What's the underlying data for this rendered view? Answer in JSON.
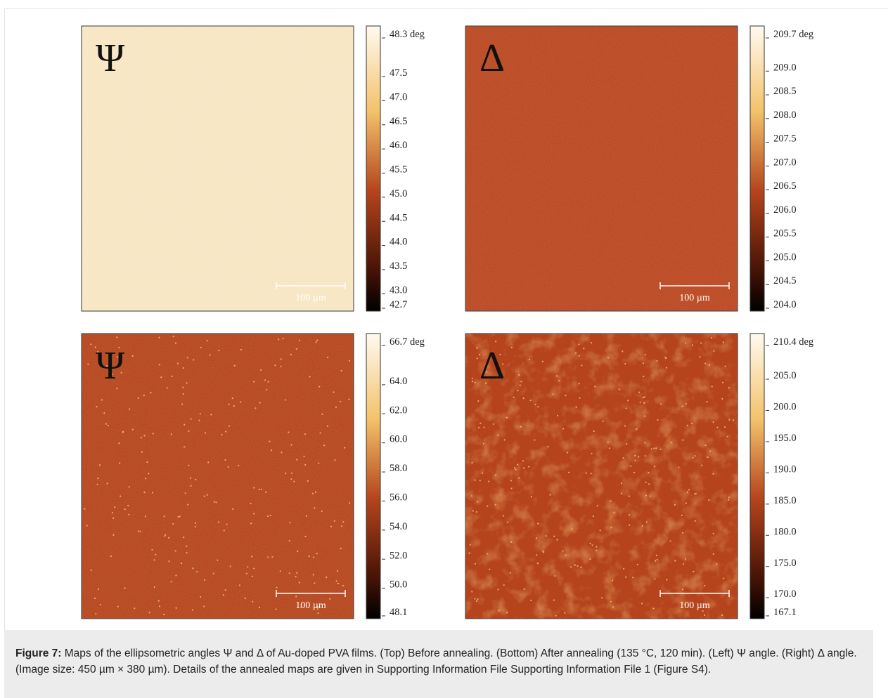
{
  "figure": {
    "panels": [
      {
        "symbol": "Ψ",
        "scale_bar": "100 µm",
        "colorbar": [
          "48.3 deg",
          "47.5",
          "47.0",
          "46.5",
          "46.0",
          "45.5",
          "45.0",
          "44.5",
          "44.0",
          "43.5",
          "43.0",
          "42.7"
        ]
      },
      {
        "symbol": "Δ",
        "scale_bar": "100 µm",
        "colorbar": [
          "209.7 deg",
          "209.0",
          "208.5",
          "208.0",
          "207.5",
          "207.0",
          "206.5",
          "206.0",
          "205.5",
          "205.0",
          "204.5",
          "204.0"
        ]
      },
      {
        "symbol": "Ψ",
        "scale_bar": "100 µm",
        "colorbar": [
          "66.7 deg",
          "64.0",
          "62.0",
          "60.0",
          "58.0",
          "56.0",
          "54.0",
          "52.0",
          "50.0",
          "48.1"
        ]
      },
      {
        "symbol": "Δ",
        "scale_bar": "100 µm",
        "colorbar": [
          "210.4 deg",
          "205.0",
          "200.0",
          "195.0",
          "190.0",
          "185.0",
          "180.0",
          "175.0",
          "170.0",
          "167.1"
        ]
      }
    ],
    "caption": {
      "label": "Figure 7:",
      "text": "Maps of the ellipsometric angles Ψ and Δ of Au-doped PVA films. (Top) Before annealing. (Bottom) After annealing (135 °C, 120 min). (Left) Ψ angle. (Right) Δ angle. (Image size: 450 µm × 380 µm). Details of the annealed maps are given in Supporting Information File Supporting Information File 1 (Figure S4)."
    }
  }
}
